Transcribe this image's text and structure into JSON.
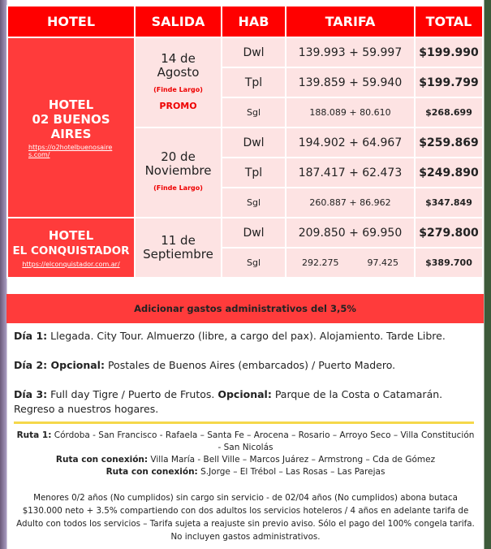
{
  "headers": [
    "HOTEL",
    "SALIDA",
    "HAB",
    "TARIFA",
    "TOTAL"
  ],
  "hotels": [
    {
      "name_1": "HOTEL",
      "name_2": "02 BUENOS AIRES",
      "url": "https://o2hotelbuenosaires.com/"
    },
    {
      "name_1": "HOTEL",
      "name_2": "EL CONQUISTADOR",
      "url": "https://elconquistador.com.ar/"
    }
  ],
  "departures": [
    {
      "date": "14 de Agosto",
      "note": "(Finde Largo)",
      "promo": "PROMO",
      "rows": [
        {
          "hab": "Dwl",
          "tarifa": "139.993 + 59.997",
          "total": "$199.990"
        },
        {
          "hab": "Tpl",
          "tarifa": "139.859 + 59.940",
          "total": "$199.799"
        },
        {
          "hab": "Sgl",
          "tarifa": "188.089 + 80.610",
          "total": "$268.699"
        }
      ]
    },
    {
      "date": "20 de Noviembre",
      "note": "(Finde Largo)",
      "rows": [
        {
          "hab": "Dwl",
          "tarifa": "194.902 + 64.967",
          "total": "$259.869"
        },
        {
          "hab": "Tpl",
          "tarifa": "187.417 + 62.473",
          "total": "$249.890"
        },
        {
          "hab": "Sgl",
          "tarifa": "260.887 + 86.962",
          "total": "$347.849"
        }
      ]
    },
    {
      "date": "11 de Septiembre",
      "rows": [
        {
          "hab": "Dwl",
          "tarifa": "209.850 + 69.950",
          "total": "$279.800"
        },
        {
          "hab": "Sgl",
          "tarifa": "292.275          97.425",
          "total": "$389.700"
        }
      ]
    }
  ],
  "admin": "Adicionar gastos administrativos del 3,5%",
  "itinerary": [
    {
      "label": "Día 1:",
      "text": " Llegada. City Tour. Almuerzo (libre, a cargo del pax). Alojamiento. Tarde Libre."
    },
    {
      "label": "Día 2: Opcional:",
      "text": " Postales de Buenos Aires (embarcados) / Puerto Madero."
    },
    {
      "label": "Día 3:",
      "text": " Full day Tigre / Puerto de Frutos. ",
      "label2": "Opcional:",
      "text2": " Parque de la Costa o Catamarán. Regreso a nuestros hogares."
    }
  ],
  "routes": [
    {
      "label": "Ruta 1:",
      "text": " Córdoba - San Francisco - Rafaela – Santa Fe – Arocena – Rosario – Arroyo Seco – Villa Constitución - San Nicolás"
    },
    {
      "label": "Ruta con conexión:",
      "text": " Villa María - Bell Ville – Marcos Juárez – Armstrong – Cda de Gómez"
    },
    {
      "label": "Ruta con conexión:",
      "text": " S.Jorge – El Trébol – Las Rosas – Las Parejas"
    }
  ],
  "notes": "Menores 0/2 años (No cumplidos) sin cargo sin servicio - de 02/04 años (No cumplidos) abona butaca $130.000 neto + 3.5% compartiendo con dos adultos los servicios hoteleros / 4 años en adelante tarifa de Adulto con todos los servicios – Tarifa sujeta a reajuste sin previo aviso. Sólo el pago del 100% congela tarifa. No incluyen gastos administrativos.",
  "colors": {
    "header": "#ff0000",
    "hotel_cell": "#ff3b3b",
    "cell": "#fde3e3",
    "divider": "#f5d84a"
  }
}
